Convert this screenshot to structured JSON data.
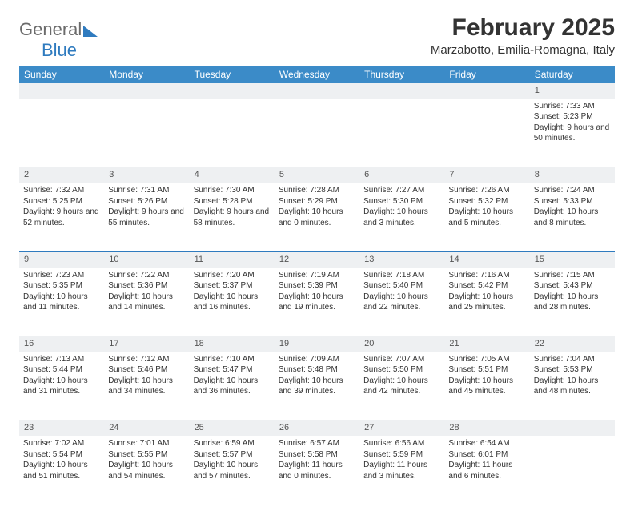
{
  "brand": {
    "part1": "General",
    "part2": "Blue"
  },
  "title": "February 2025",
  "subtitle": "Marzabotto, Emilia-Romagna, Italy",
  "colors": {
    "header_bg": "#3b8bc8",
    "header_text": "#ffffff",
    "daynum_bg": "#eef0f2",
    "divider": "#2f7bbf",
    "text": "#333333",
    "logo_gray": "#6b6b6b",
    "logo_blue": "#2f7bbf",
    "page_bg": "#ffffff"
  },
  "typography": {
    "title_fontsize": 30,
    "subtitle_fontsize": 15,
    "header_fontsize": 12,
    "daynum_fontsize": 11,
    "cell_fontsize": 10
  },
  "day_headers": [
    "Sunday",
    "Monday",
    "Tuesday",
    "Wednesday",
    "Thursday",
    "Friday",
    "Saturday"
  ],
  "weeks": [
    {
      "nums": [
        "",
        "",
        "",
        "",
        "",
        "",
        "1"
      ],
      "cells": [
        [],
        [],
        [],
        [],
        [],
        [],
        [
          "Sunrise: 7:33 AM",
          "Sunset: 5:23 PM",
          "Daylight: 9 hours and 50 minutes."
        ]
      ]
    },
    {
      "nums": [
        "2",
        "3",
        "4",
        "5",
        "6",
        "7",
        "8"
      ],
      "cells": [
        [
          "Sunrise: 7:32 AM",
          "Sunset: 5:25 PM",
          "Daylight: 9 hours and 52 minutes."
        ],
        [
          "Sunrise: 7:31 AM",
          "Sunset: 5:26 PM",
          "Daylight: 9 hours and 55 minutes."
        ],
        [
          "Sunrise: 7:30 AM",
          "Sunset: 5:28 PM",
          "Daylight: 9 hours and 58 minutes."
        ],
        [
          "Sunrise: 7:28 AM",
          "Sunset: 5:29 PM",
          "Daylight: 10 hours and 0 minutes."
        ],
        [
          "Sunrise: 7:27 AM",
          "Sunset: 5:30 PM",
          "Daylight: 10 hours and 3 minutes."
        ],
        [
          "Sunrise: 7:26 AM",
          "Sunset: 5:32 PM",
          "Daylight: 10 hours and 5 minutes."
        ],
        [
          "Sunrise: 7:24 AM",
          "Sunset: 5:33 PM",
          "Daylight: 10 hours and 8 minutes."
        ]
      ]
    },
    {
      "nums": [
        "9",
        "10",
        "11",
        "12",
        "13",
        "14",
        "15"
      ],
      "cells": [
        [
          "Sunrise: 7:23 AM",
          "Sunset: 5:35 PM",
          "Daylight: 10 hours and 11 minutes."
        ],
        [
          "Sunrise: 7:22 AM",
          "Sunset: 5:36 PM",
          "Daylight: 10 hours and 14 minutes."
        ],
        [
          "Sunrise: 7:20 AM",
          "Sunset: 5:37 PM",
          "Daylight: 10 hours and 16 minutes."
        ],
        [
          "Sunrise: 7:19 AM",
          "Sunset: 5:39 PM",
          "Daylight: 10 hours and 19 minutes."
        ],
        [
          "Sunrise: 7:18 AM",
          "Sunset: 5:40 PM",
          "Daylight: 10 hours and 22 minutes."
        ],
        [
          "Sunrise: 7:16 AM",
          "Sunset: 5:42 PM",
          "Daylight: 10 hours and 25 minutes."
        ],
        [
          "Sunrise: 7:15 AM",
          "Sunset: 5:43 PM",
          "Daylight: 10 hours and 28 minutes."
        ]
      ]
    },
    {
      "nums": [
        "16",
        "17",
        "18",
        "19",
        "20",
        "21",
        "22"
      ],
      "cells": [
        [
          "Sunrise: 7:13 AM",
          "Sunset: 5:44 PM",
          "Daylight: 10 hours and 31 minutes."
        ],
        [
          "Sunrise: 7:12 AM",
          "Sunset: 5:46 PM",
          "Daylight: 10 hours and 34 minutes."
        ],
        [
          "Sunrise: 7:10 AM",
          "Sunset: 5:47 PM",
          "Daylight: 10 hours and 36 minutes."
        ],
        [
          "Sunrise: 7:09 AM",
          "Sunset: 5:48 PM",
          "Daylight: 10 hours and 39 minutes."
        ],
        [
          "Sunrise: 7:07 AM",
          "Sunset: 5:50 PM",
          "Daylight: 10 hours and 42 minutes."
        ],
        [
          "Sunrise: 7:05 AM",
          "Sunset: 5:51 PM",
          "Daylight: 10 hours and 45 minutes."
        ],
        [
          "Sunrise: 7:04 AM",
          "Sunset: 5:53 PM",
          "Daylight: 10 hours and 48 minutes."
        ]
      ]
    },
    {
      "nums": [
        "23",
        "24",
        "25",
        "26",
        "27",
        "28",
        ""
      ],
      "cells": [
        [
          "Sunrise: 7:02 AM",
          "Sunset: 5:54 PM",
          "Daylight: 10 hours and 51 minutes."
        ],
        [
          "Sunrise: 7:01 AM",
          "Sunset: 5:55 PM",
          "Daylight: 10 hours and 54 minutes."
        ],
        [
          "Sunrise: 6:59 AM",
          "Sunset: 5:57 PM",
          "Daylight: 10 hours and 57 minutes."
        ],
        [
          "Sunrise: 6:57 AM",
          "Sunset: 5:58 PM",
          "Daylight: 11 hours and 0 minutes."
        ],
        [
          "Sunrise: 6:56 AM",
          "Sunset: 5:59 PM",
          "Daylight: 11 hours and 3 minutes."
        ],
        [
          "Sunrise: 6:54 AM",
          "Sunset: 6:01 PM",
          "Daylight: 11 hours and 6 minutes."
        ],
        []
      ]
    }
  ]
}
